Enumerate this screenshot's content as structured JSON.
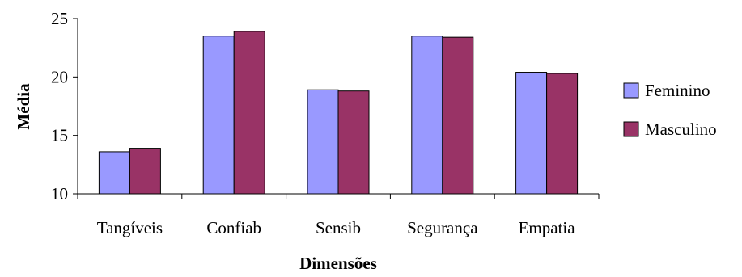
{
  "chart_data": {
    "type": "bar",
    "title": "",
    "xlabel": "Dimensões",
    "ylabel": "Média",
    "categories": [
      "Tangíveis",
      "Confiab",
      "Sensib",
      "Segurança",
      "Empatia"
    ],
    "series": [
      {
        "name": "Feminino",
        "values": [
          13.6,
          23.5,
          18.9,
          23.5,
          20.4
        ],
        "color": "#9999FF"
      },
      {
        "name": "Masculino",
        "values": [
          13.9,
          23.9,
          18.8,
          23.4,
          20.3
        ],
        "color": "#993366"
      }
    ],
    "ylim": [
      10,
      25
    ],
    "yticks": [
      "10",
      "15",
      "20",
      "25"
    ],
    "grid": false,
    "legend_position": "right"
  }
}
